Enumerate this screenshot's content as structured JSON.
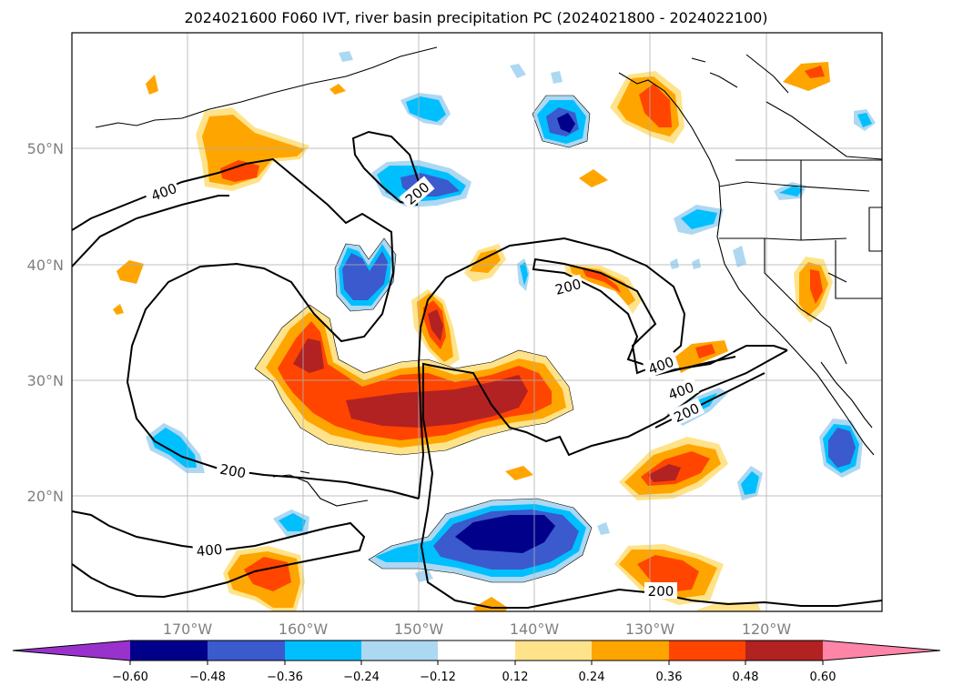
{
  "title": "2024021600 F060 IVT, river basin precipitation PC (2024021800 - 2024022100)",
  "map": {
    "lon_min": -180,
    "lon_max": -110,
    "lat_min": 10,
    "lat_max": 60,
    "grid": true,
    "lat_labels": [
      "20°N",
      "30°N",
      "40°N",
      "50°N"
    ],
    "lon_labels": [
      "170°W",
      "160°W",
      "150°W",
      "140°W",
      "130°W",
      "120°W"
    ],
    "contour_labels": [
      "400",
      "200",
      "200",
      "400",
      "400",
      "200",
      "200",
      "400",
      "200"
    ]
  },
  "colorbar": {
    "tick_labels": [
      "−0.60",
      "−0.48",
      "−0.36",
      "−0.24",
      "−0.12",
      "0.12",
      "0.24",
      "0.36",
      "0.48",
      "0.60"
    ],
    "colors": [
      "#9932cc",
      "#00008b",
      "#3a5acd",
      "#00bfff",
      "#add8f2",
      "#ffffff",
      "#ffe38a",
      "#ffa500",
      "#ff4500",
      "#b22222",
      "#ff85a8"
    ]
  },
  "colors": {
    "light_blue": "#add8f2",
    "cyan": "#00bfff",
    "royal": "#3a5acd",
    "navy": "#00008b",
    "yellow": "#ffe38a",
    "orange": "#ffa500",
    "red_orange": "#ff4500",
    "firebrick": "#b22222"
  }
}
